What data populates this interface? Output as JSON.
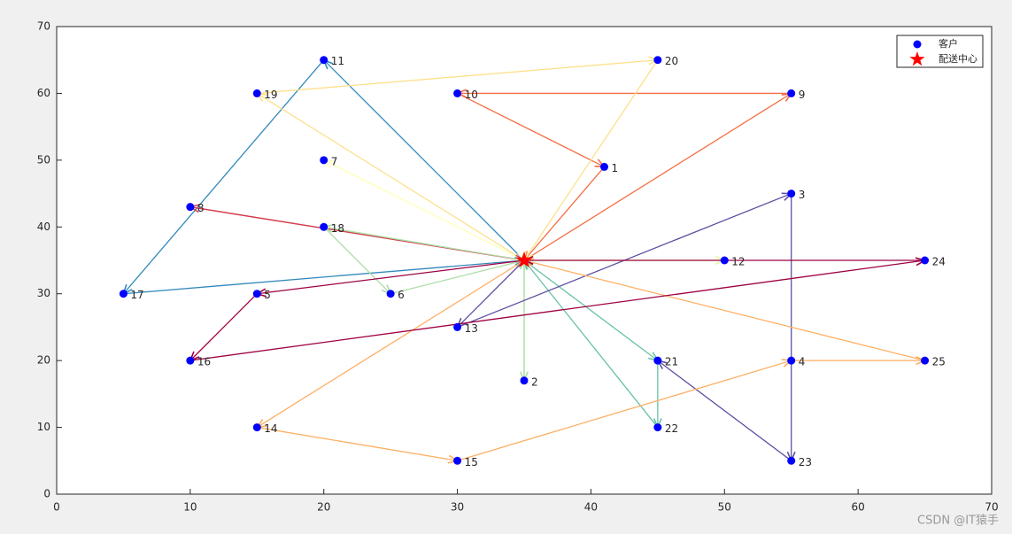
{
  "chart_data": {
    "type": "route",
    "xlim": [
      0,
      70
    ],
    "ylim": [
      0,
      70
    ],
    "xticks": [
      0,
      10,
      20,
      30,
      40,
      50,
      60,
      70
    ],
    "yticks": [
      0,
      10,
      20,
      30,
      40,
      50,
      60,
      70
    ],
    "legend": {
      "position": "upper right",
      "customer": "客户",
      "depot": "配送中心"
    },
    "customer_color": "#0000ff",
    "depot_color": "#ff0000",
    "depot": {
      "x": 35,
      "y": 35
    },
    "customers": [
      {
        "label": "1",
        "x": 41,
        "y": 49
      },
      {
        "label": "2",
        "x": 35,
        "y": 17
      },
      {
        "label": "3",
        "x": 55,
        "y": 45
      },
      {
        "label": "4",
        "x": 55,
        "y": 20
      },
      {
        "label": "5",
        "x": 15,
        "y": 30
      },
      {
        "label": "6",
        "x": 25,
        "y": 30
      },
      {
        "label": "7",
        "x": 20,
        "y": 50
      },
      {
        "label": "8",
        "x": 10,
        "y": 43
      },
      {
        "label": "9",
        "x": 55,
        "y": 60
      },
      {
        "label": "10",
        "x": 30,
        "y": 60
      },
      {
        "label": "11",
        "x": 20,
        "y": 65
      },
      {
        "label": "12",
        "x": 50,
        "y": 35
      },
      {
        "label": "13",
        "x": 30,
        "y": 25
      },
      {
        "label": "14",
        "x": 15,
        "y": 10
      },
      {
        "label": "15",
        "x": 30,
        "y": 5
      },
      {
        "label": "16",
        "x": 10,
        "y": 20
      },
      {
        "label": "17",
        "x": 5,
        "y": 30
      },
      {
        "label": "18",
        "x": 20,
        "y": 40
      },
      {
        "label": "19",
        "x": 15,
        "y": 60
      },
      {
        "label": "20",
        "x": 45,
        "y": 65
      },
      {
        "label": "21",
        "x": 45,
        "y": 20
      },
      {
        "label": "22",
        "x": 45,
        "y": 10
      },
      {
        "label": "23",
        "x": 55,
        "y": 5
      },
      {
        "label": "24",
        "x": 65,
        "y": 35
      },
      {
        "label": "25",
        "x": 65,
        "y": 20
      }
    ],
    "routes": [
      {
        "color": "#f46d43",
        "stops": [
          0,
          9,
          10,
          1,
          0
        ]
      },
      {
        "color": "#3288bd",
        "stops": [
          0,
          11,
          17,
          0
        ]
      },
      {
        "color": "#fee08b",
        "stops": [
          0,
          19,
          20,
          0
        ]
      },
      {
        "color": "#ffffbf",
        "stops": [
          0,
          7,
          0
        ]
      },
      {
        "color": "#e6f598",
        "stops": [
          0,
          12,
          0
        ]
      },
      {
        "color": "#d53e4f",
        "stops": [
          0,
          8,
          0
        ]
      },
      {
        "color": "#abdda4",
        "stops": [
          0,
          18,
          6,
          0,
          2,
          0
        ]
      },
      {
        "color": "#66c2a5",
        "stops": [
          0,
          21,
          22,
          0
        ]
      },
      {
        "color": "#5e4fa2",
        "stops": [
          0,
          13,
          3,
          23,
          21
        ]
      },
      {
        "color": "#fdae61",
        "stops": [
          0,
          14,
          15,
          4,
          25,
          0
        ]
      },
      {
        "color": "#9e0142",
        "stops": [
          0,
          5,
          16,
          24,
          0
        ]
      }
    ],
    "watermark": "CSDN @IT猿手"
  }
}
